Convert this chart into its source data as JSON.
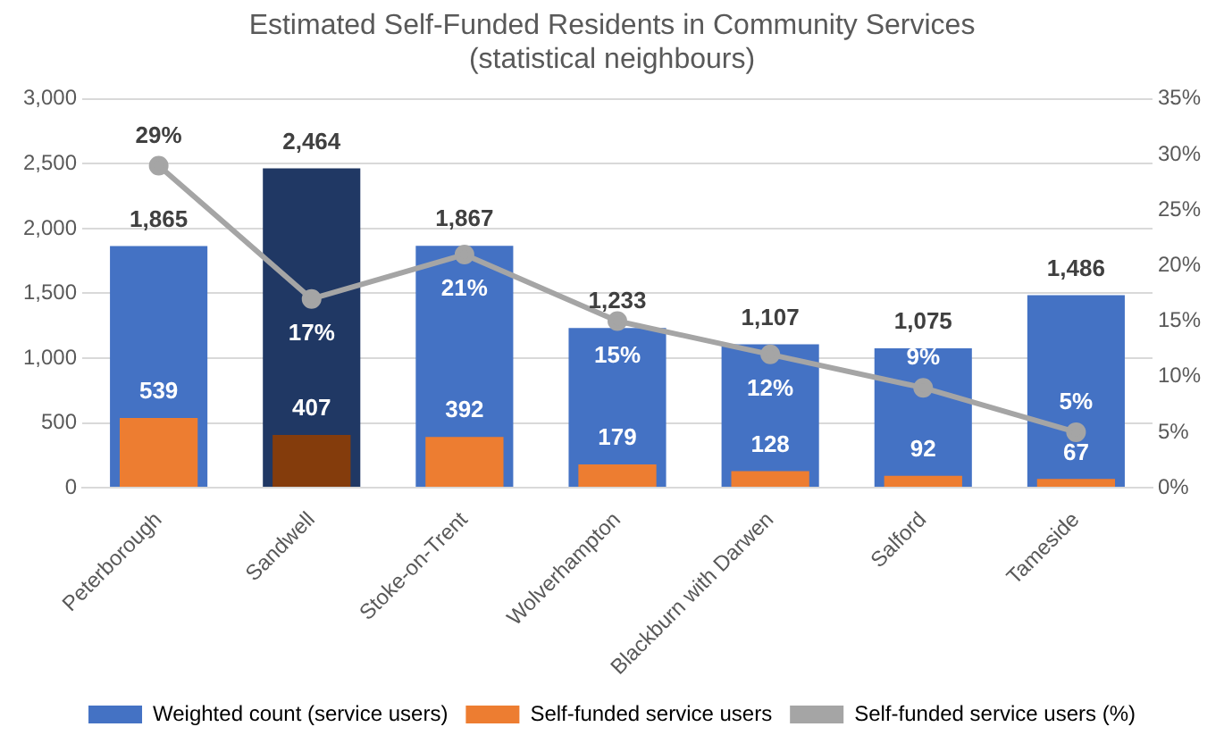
{
  "chart_data": {
    "type": "bar",
    "title": "Estimated Self-Funded Residents in Community Services\n(statistical neighbours)",
    "categories": [
      "Peterborough",
      "Sandwell",
      "Stoke-on-Trent",
      "Wolverhampton",
      "Blackburn with Darwen",
      "Salford",
      "Tameside"
    ],
    "series": [
      {
        "name": "Weighted count (service users)",
        "color": "#4472c4",
        "colors": [
          "#4472c4",
          "#203864",
          "#4472c4",
          "#4472c4",
          "#4472c4",
          "#4472c4",
          "#4472c4"
        ],
        "values": [
          1865,
          2464,
          1867,
          1233,
          1107,
          1075,
          1486
        ],
        "value_labels": [
          "1,865",
          "2,464",
          "1,867",
          "1,233",
          "1,107",
          "1,075",
          "1,486"
        ]
      },
      {
        "name": "Self-funded service users",
        "color": "#ed7d31",
        "colors": [
          "#ed7d31",
          "#843c0c",
          "#ed7d31",
          "#ed7d31",
          "#ed7d31",
          "#ed7d31",
          "#ed7d31"
        ],
        "values": [
          539,
          407,
          392,
          179,
          128,
          92,
          67
        ],
        "value_labels": [
          "539",
          "407",
          "392",
          "179",
          "128",
          "92",
          "67"
        ]
      },
      {
        "name": "Self-funded service users (%)",
        "type": "line",
        "axis": "y2",
        "color": "#a5a5a5",
        "values": [
          29,
          17,
          21,
          15,
          12,
          9,
          5
        ],
        "value_labels": [
          "29%",
          "17%",
          "21%",
          "15%",
          "12%",
          "9%",
          "5%"
        ]
      }
    ],
    "ylim": [
      0,
      3000
    ],
    "yticks": [
      0,
      {
        "value": 500,
        "label": "500"
      },
      {
        "value": 1000,
        "label": "1,000"
      },
      {
        "value": 1500,
        "label": "1,500"
      },
      {
        "value": 2000,
        "label": "2,000"
      },
      {
        "value": 2500,
        "label": "2,500"
      },
      {
        "value": 3000,
        "label": "3,000"
      }
    ],
    "y2lim": [
      0,
      35
    ],
    "y2ticks": [
      {
        "value": 0,
        "label": "0%"
      },
      {
        "value": 5,
        "label": "5%"
      },
      {
        "value": 10,
        "label": "10%"
      },
      {
        "value": 15,
        "label": "15%"
      },
      {
        "value": 20,
        "label": "20%"
      },
      {
        "value": 25,
        "label": "25%"
      },
      {
        "value": 30,
        "label": "30%"
      },
      {
        "value": 35,
        "label": "35%"
      }
    ],
    "grid": "y",
    "legend": "bottom",
    "marker": "circle",
    "line_style": "solid"
  }
}
